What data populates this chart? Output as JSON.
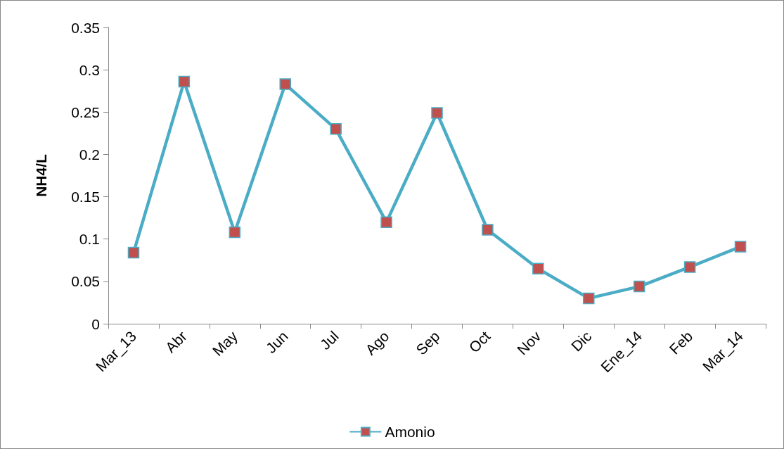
{
  "chart_data": {
    "type": "line",
    "ylabel": "NH4/L",
    "categories": [
      "Mar_13",
      "Abr",
      "May",
      "Jun",
      "Jul",
      "Ago",
      "Sep",
      "Oct",
      "Nov",
      "Dic",
      "Ene_14",
      "Feb",
      "Mar_14"
    ],
    "series": [
      {
        "name": "Amonio",
        "color": "#4bacc6",
        "colors": [
          "#c0504d",
          "#c0504d",
          "#c0504d",
          "#c0504d",
          "#c0504d",
          "#c0504d",
          "#c0504d",
          "#c0504d",
          "#c0504d",
          "#c0504d",
          "#c0504d",
          "#c0504d",
          "#c0504d"
        ],
        "values": [
          0.084,
          0.286,
          0.108,
          0.283,
          0.23,
          0.12,
          0.249,
          0.111,
          0.065,
          0.03,
          0.044,
          0.067,
          0.091
        ]
      }
    ],
    "ylim": [
      0,
      0.35
    ],
    "yticks": [
      0,
      0.05,
      0.1,
      0.15,
      0.2,
      0.25,
      0.3,
      0.35
    ],
    "grid": false,
    "legend": "bottom",
    "marker": "square",
    "line_style": "solid"
  }
}
